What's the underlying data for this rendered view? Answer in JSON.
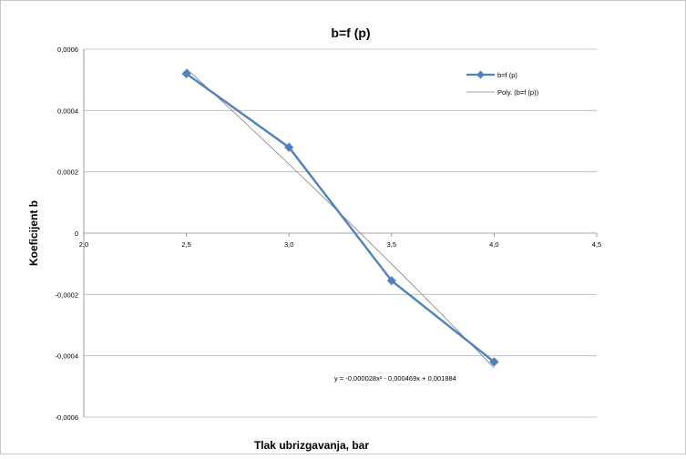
{
  "chart_data": {
    "type": "line",
    "title": "b=f (p)",
    "xlabel": "Tlak ubrizgavanja, bar",
    "ylabel": "Koeficijent b",
    "xlim": [
      2.0,
      4.5
    ],
    "ylim": [
      -0.0006,
      0.0006
    ],
    "x_ticks": [
      "2,0",
      "2,5",
      "3,0",
      "3,5",
      "4,0",
      "4,5"
    ],
    "y_ticks": [
      "0,0006",
      "0,0004",
      "0,0002",
      "0",
      "-0,0002",
      "-0,0004",
      "-0,0006"
    ],
    "grid": "horizontal",
    "legend_position": "top-right",
    "series": [
      {
        "name": "b=f (p)",
        "x": [
          2.5,
          3.0,
          3.5,
          4.0
        ],
        "values": [
          0.00052,
          0.00028,
          -0.000155,
          -0.00042
        ],
        "color": "#4f81bd",
        "marker": "diamond"
      }
    ],
    "trendline": {
      "name": "Poly. (b=f (p))",
      "type": "polynomial-2",
      "coefficients": [
        -2.8e-05,
        -0.000469,
        0.001884
      ],
      "equation": "y = -0,000028x² - 0,000469x + 0,001884",
      "color": "#808080"
    }
  }
}
